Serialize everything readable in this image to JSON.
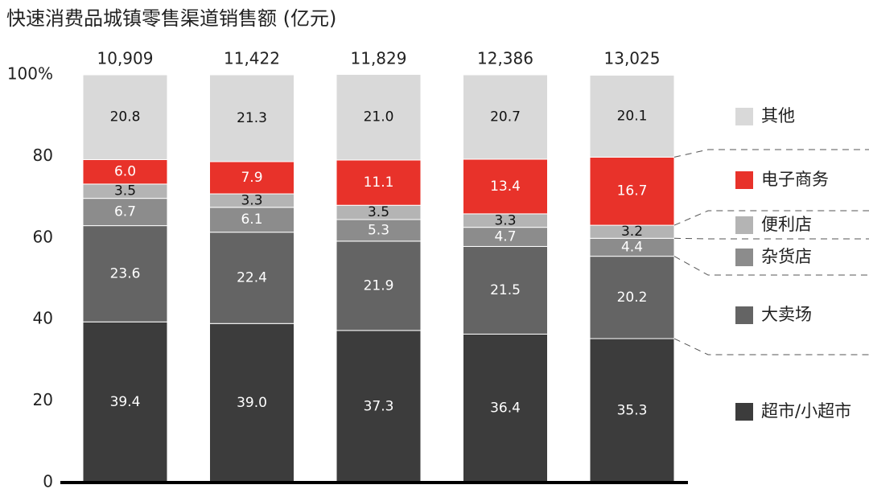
{
  "chart_data": {
    "type": "stacked_bar",
    "title": "快速消费品城镇零售渠道销售额 (亿元)",
    "categories": [
      null,
      null,
      null,
      null,
      null
    ],
    "totals": {
      "values": [
        10909,
        11422,
        11829,
        12386,
        13025
      ],
      "value_labels": [
        "10,909",
        "11,422",
        "11,829",
        "12,386",
        "13,025"
      ]
    },
    "series": [
      {
        "name": "超市/小超市",
        "color": "#3c3c3c",
        "values": [
          39.4,
          39.0,
          37.3,
          36.4,
          35.3
        ],
        "value_labels": [
          "39.4",
          "39.0",
          "37.3",
          "36.4",
          "35.3"
        ]
      },
      {
        "name": "大卖场",
        "color": "#646464",
        "values": [
          23.6,
          22.4,
          21.9,
          21.5,
          20.2
        ],
        "value_labels": [
          "23.6",
          "22.4",
          "21.9",
          "21.5",
          "20.2"
        ]
      },
      {
        "name": "杂货店",
        "color": "#8c8c8c",
        "values": [
          6.7,
          6.1,
          5.3,
          4.7,
          4.4
        ],
        "value_labels": [
          "6.7",
          "6.1",
          "5.3",
          "4.7",
          "4.4"
        ]
      },
      {
        "name": "便利店",
        "color": "#b4b4b4",
        "values": [
          3.5,
          3.3,
          3.5,
          3.3,
          3.2
        ],
        "value_labels": [
          "3.5",
          "3.3",
          "3.5",
          "3.3",
          "3.2"
        ]
      },
      {
        "name": "电子商务",
        "color": "#e8322a",
        "values": [
          6.0,
          7.9,
          11.1,
          13.4,
          16.7
        ],
        "value_labels": [
          "6.0",
          "7.9",
          "11.1",
          "13.4",
          "16.7"
        ]
      },
      {
        "name": "其他",
        "color": "#d9d9d9",
        "values": [
          20.8,
          21.3,
          21.0,
          20.7,
          20.1
        ],
        "value_labels": [
          "20.8",
          "21.3",
          "21.0",
          "20.7",
          "20.1"
        ]
      }
    ],
    "ylim": [
      0,
      100
    ],
    "yticks": [
      0,
      20,
      40,
      60,
      80,
      {
        "value": 100,
        "label": "100%"
      }
    ],
    "grid": false
  }
}
